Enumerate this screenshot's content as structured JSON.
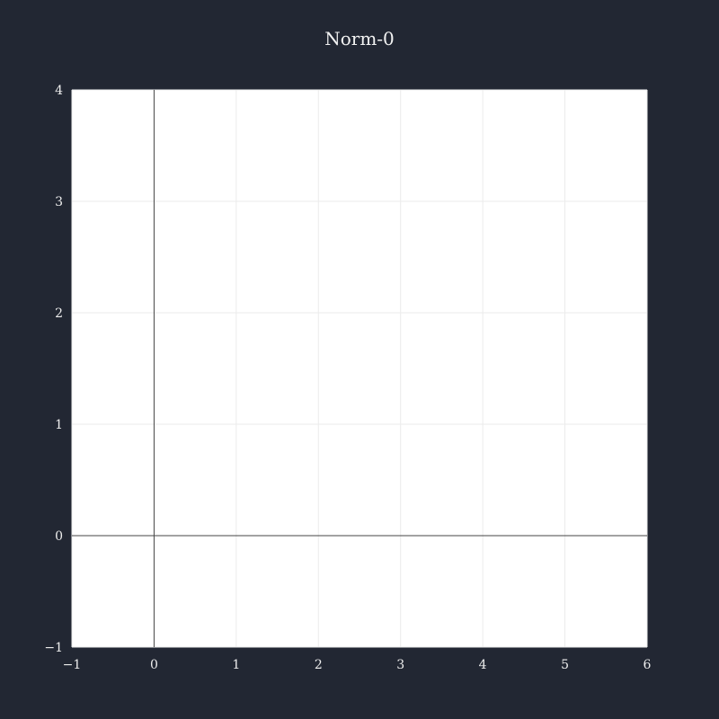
{
  "chart_data": {
    "type": "line",
    "title": "Norm-0",
    "xlabel": "",
    "ylabel": "",
    "xlim": [
      -1,
      6
    ],
    "ylim": [
      -1,
      4
    ],
    "x_ticks": [
      "−1",
      "0",
      "1",
      "2",
      "3",
      "4",
      "5",
      "6"
    ],
    "y_ticks": [
      "−1",
      "0",
      "1",
      "2",
      "3",
      "4"
    ],
    "series": [],
    "grid": true,
    "zero_lines": true,
    "legend": "none"
  },
  "colors": {
    "page_background": "#222733",
    "plot_background": "#ffffff",
    "grid": "#ebebeb",
    "zero_line": "#444444",
    "text": "#eeeeee"
  }
}
